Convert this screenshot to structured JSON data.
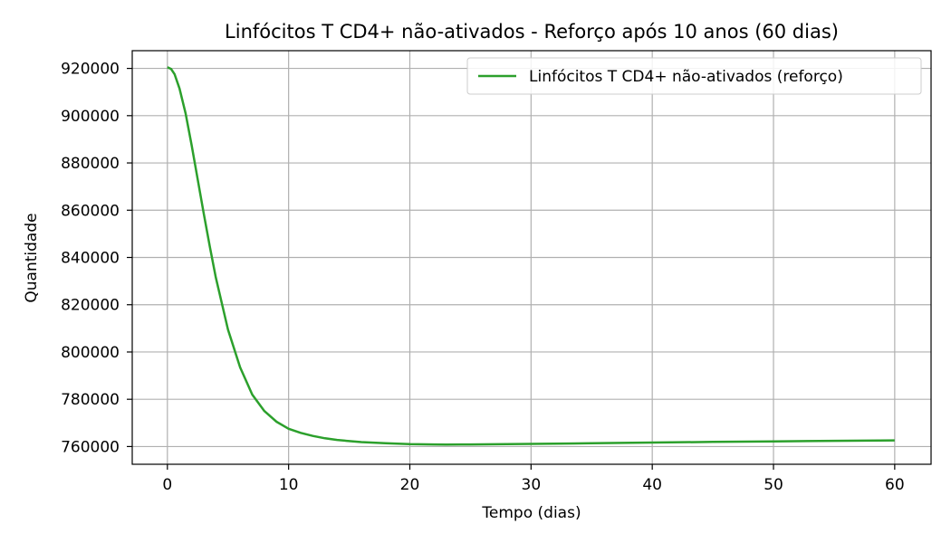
{
  "chart_data": {
    "type": "line",
    "title": "Linfócitos T CD4+ não-ativados - Reforço após 10 anos (60 dias)",
    "xlabel": "Tempo (dias)",
    "ylabel": "Quantidade",
    "xlim": [
      -2.9,
      63
    ],
    "ylim": [
      752500,
      927500
    ],
    "x_ticks": [
      0,
      10,
      20,
      30,
      40,
      50,
      60
    ],
    "y_ticks": [
      760000,
      780000,
      800000,
      820000,
      840000,
      860000,
      880000,
      900000,
      920000
    ],
    "grid": true,
    "legend_position": "top-right",
    "colors": {
      "series": "#2ca02c",
      "grid": "#b0b0b0",
      "axes": "#000000"
    },
    "series": [
      {
        "name": "Linfócitos T CD4+ não-ativados (reforço)",
        "x": [
          0,
          0.3,
          0.6,
          1,
          1.5,
          2,
          2.5,
          3,
          3.5,
          4,
          5,
          6,
          7,
          8,
          9,
          10,
          11,
          12,
          13,
          14,
          15,
          16,
          18,
          20,
          22,
          23,
          25,
          30,
          35,
          40,
          45,
          50,
          55,
          60
        ],
        "y": [
          920500,
          919800,
          917500,
          911500,
          901000,
          887500,
          873000,
          858500,
          844500,
          831500,
          809500,
          793500,
          782000,
          775000,
          770500,
          767500,
          765800,
          764500,
          763500,
          762800,
          762300,
          761900,
          761400,
          761000,
          760900,
          760850,
          760900,
          761100,
          761400,
          761700,
          761950,
          762200,
          762400,
          762600
        ]
      }
    ]
  }
}
